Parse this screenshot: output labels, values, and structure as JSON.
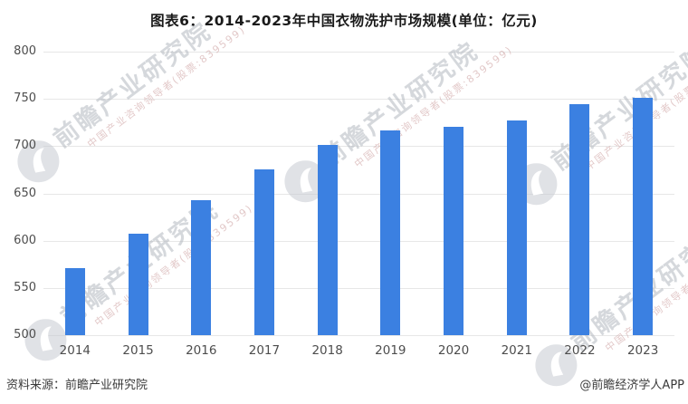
{
  "title": "图表6：2014-2023年中国衣物洗护市场规模(单位：亿元)",
  "footer": {
    "source": "资料来源：前瞻产业研究院",
    "credit": "@前瞻经济学人APP"
  },
  "watermark": {
    "brand": "前瞻产业研究院",
    "tagline": "中国产业咨询领导者(股票:839599)",
    "logo": "qianzhan-logo"
  },
  "colors": {
    "bar": "#3B80E1",
    "grid": "#e7e7e7",
    "axis_label": "#4d4d4d",
    "title": "#1a1a1a",
    "footer": "#3a3a3a",
    "watermark_circle": "#c7cbd1"
  },
  "chart_data": {
    "type": "bar",
    "title": "图表6：2014-2023年中国衣物洗护市场规模(单位：亿元)",
    "unit": "亿元",
    "categories": [
      "2014",
      "2015",
      "2016",
      "2017",
      "2018",
      "2019",
      "2020",
      "2021",
      "2022",
      "2023"
    ],
    "values": [
      571,
      607,
      643,
      675,
      701,
      717,
      720,
      727,
      744,
      751
    ],
    "xlabel": "",
    "ylabel": "",
    "ylim": [
      500,
      800
    ],
    "yticks": [
      500,
      550,
      600,
      650,
      700,
      750,
      800
    ],
    "grid": true,
    "legend": false,
    "source_note": "资料来源：前瞻产业研究院",
    "credit_note": "@前瞻经济学人APP"
  }
}
